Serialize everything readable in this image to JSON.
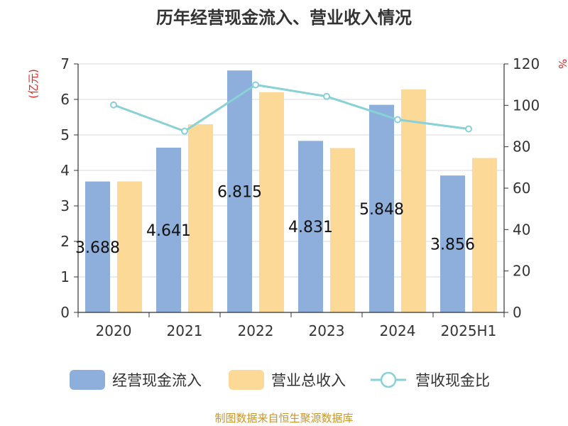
{
  "title": "历年经营现金流入、营业收入情况",
  "left_unit": "(亿元)",
  "right_unit": "%",
  "source": "制图数据来自恒生聚源数据库",
  "colors": {
    "cash_inflow": "#8eaedb",
    "revenue": "#fdd998",
    "ratio": "#88d1d6",
    "axis": "#333333",
    "grid": "#d9d9d9",
    "unit": "#e0261f",
    "source": "#c8962a"
  },
  "chart_data": {
    "type": "bar",
    "categories": [
      "2020",
      "2021",
      "2022",
      "2023",
      "2024",
      "2025H1"
    ],
    "series": [
      {
        "name": "经营现金流入",
        "type": "bar",
        "axis": "left",
        "values": [
          3.688,
          4.641,
          6.815,
          4.831,
          5.848,
          3.856
        ],
        "labels": [
          "3.688",
          "4.641",
          "6.815",
          "4.831",
          "5.848",
          "3.856"
        ]
      },
      {
        "name": "营业总收入",
        "type": "bar",
        "axis": "left",
        "values": [
          3.69,
          5.3,
          6.2,
          4.63,
          6.28,
          4.35
        ]
      },
      {
        "name": "营收现金比",
        "type": "line",
        "axis": "right",
        "values": [
          100.2,
          87.5,
          109.9,
          104.3,
          93.1,
          88.6
        ]
      }
    ],
    "left_axis": {
      "min": 0,
      "max": 7,
      "ticks": [
        "0",
        "1",
        "2",
        "3",
        "4",
        "5",
        "6",
        "7"
      ]
    },
    "right_axis": {
      "min": 0,
      "max": 120,
      "ticks": [
        "0",
        "20",
        "40",
        "60",
        "80",
        "100",
        "120"
      ]
    },
    "grid": true,
    "legend": "bottom"
  }
}
